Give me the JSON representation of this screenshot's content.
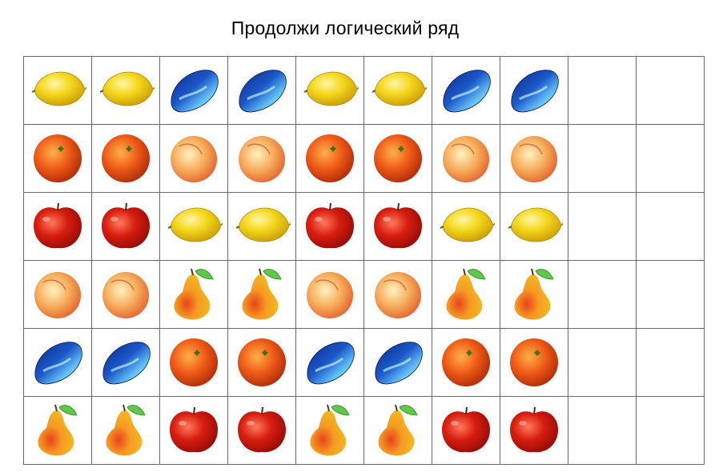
{
  "title": "Продолжи логический ряд",
  "colors": {
    "grid_border": "#6b6b6b",
    "lemon": "#f4d81c",
    "orange": "#ee5a16",
    "peach": "#f6ad5a",
    "apple": "#d81d10",
    "plum": "#1b58c8",
    "pear": "#f1bc22",
    "leaf": "#5ec84a"
  },
  "grid": {
    "columns": 10,
    "rows": [
      [
        "lemon",
        "lemon",
        "plum",
        "plum",
        "lemon",
        "lemon",
        "plum",
        "plum",
        "empty",
        "empty"
      ],
      [
        "orange",
        "orange",
        "peach",
        "peach",
        "orange",
        "orange",
        "peach",
        "peach",
        "empty",
        "empty"
      ],
      [
        "apple",
        "apple",
        "lemon",
        "lemon",
        "apple",
        "apple",
        "lemon",
        "lemon",
        "empty",
        "empty"
      ],
      [
        "peach",
        "peach",
        "pear",
        "pear",
        "peach",
        "peach",
        "pear",
        "pear",
        "empty",
        "empty"
      ],
      [
        "plum",
        "plum",
        "orange",
        "orange",
        "plum",
        "plum",
        "orange",
        "orange",
        "empty",
        "empty"
      ],
      [
        "pear",
        "pear",
        "apple",
        "apple",
        "pear",
        "pear",
        "apple",
        "apple",
        "empty",
        "empty"
      ]
    ]
  }
}
